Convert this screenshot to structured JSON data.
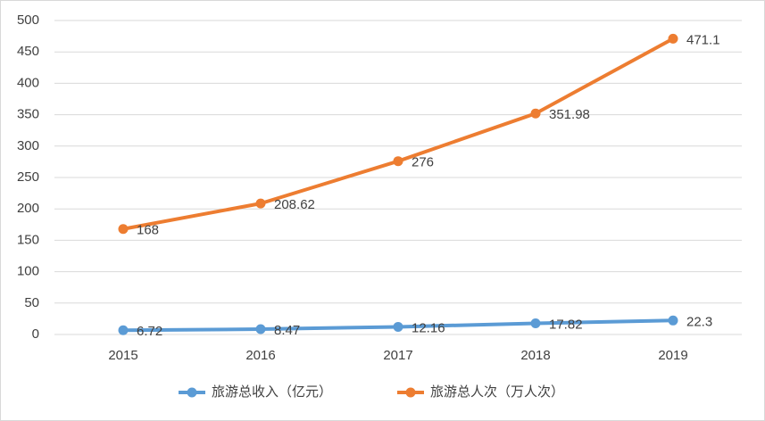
{
  "chart_data": {
    "type": "line",
    "categories": [
      "2015",
      "2016",
      "2017",
      "2018",
      "2019"
    ],
    "series": [
      {
        "name": "旅游总收入（亿元）",
        "color": "#5b9bd5",
        "values": [
          6.72,
          8.47,
          12.16,
          17.82,
          22.3
        ]
      },
      {
        "name": "旅游总人次（万人次）",
        "color": "#ed7d31",
        "values": [
          168,
          208.62,
          276,
          351.98,
          471.1
        ]
      }
    ],
    "ylim": [
      0,
      500
    ],
    "yticks": [
      0,
      50,
      100,
      150,
      200,
      250,
      300,
      350,
      400,
      450,
      500
    ],
    "grid": true,
    "legend": "bottom"
  }
}
